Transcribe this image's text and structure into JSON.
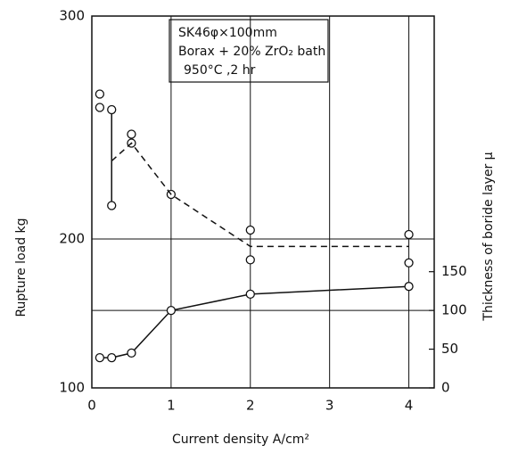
{
  "chart_data": {
    "type": "line",
    "annotations": [
      "SK46φ×100mm",
      "Borax + 20% ZrO₂ bath",
      "950°C ,2 hr"
    ],
    "xlabel": "Current density   A/cm²",
    "ylabel": "Rupture load   kg",
    "y2label": "Thickness of boride layer   μ",
    "xlim": [
      0,
      4.32
    ],
    "xticks": [
      0,
      1,
      2,
      3,
      4
    ],
    "ylim": [
      100,
      300
    ],
    "yticks": [
      100,
      200,
      300
    ],
    "y2lim": [
      0,
      480
    ],
    "y2ticks": [
      0,
      50,
      100,
      150
    ],
    "grid": true,
    "color": "#111111",
    "series": [
      {
        "style": "markers",
        "x": [
          0.1,
          0.1,
          0.25,
          0.25,
          0.5,
          0.5,
          1,
          2,
          2,
          4,
          4
        ],
        "values": [
          265,
          259,
          258,
          215,
          247,
          243,
          220,
          204,
          186,
          202,
          184
        ]
      },
      {
        "style": "dashed",
        "x": [
          0.25,
          0.5,
          1,
          2,
          4
        ],
        "values": [
          235,
          243,
          220,
          195,
          195
        ]
      },
      {
        "style": "solid",
        "axis": "y2",
        "x": [
          0.1,
          0.25,
          0.5,
          1,
          2,
          4
        ],
        "values": [
          39,
          39,
          45,
          100,
          121,
          131
        ]
      }
    ]
  }
}
